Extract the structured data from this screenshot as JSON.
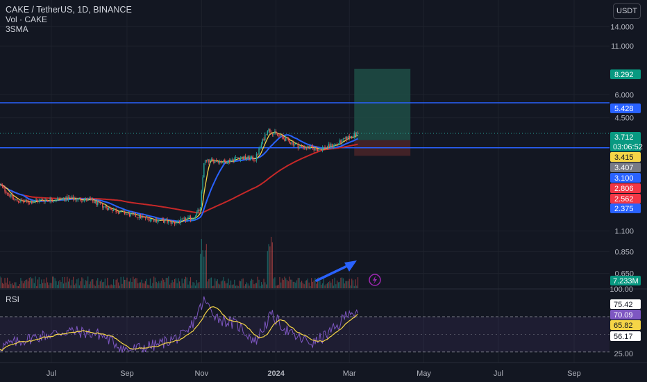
{
  "legend": {
    "title": "CAKE / TetherUS, 1D, BINANCE",
    "vol": "Vol · CAKE",
    "sma": "3SMA"
  },
  "currency_button": "USDT",
  "rsi_pane": {
    "label": "RSI"
  },
  "colors": {
    "background": "#131722",
    "grid": "#1e222d",
    "candle_up": "#26a69a",
    "candle_down": "#ef5350",
    "ma_fast": "#f5d547",
    "ma_mid": "#2962ff",
    "ma_slow": "#c62828",
    "hline": "#2962ff",
    "rsi_line": "#7e57c2",
    "rsi_ma": "#f5d547",
    "arrow": "#2962ff",
    "target_zone": "#1e4d45",
    "stop_zone": "#4a2528"
  },
  "chart_data": [
    {
      "type": "candlestick",
      "title": "CAKE / TetherUS, 1D, BINANCE",
      "y_scale": "log",
      "y_tick_labels": [
        "14.000",
        "11.000",
        "6.000",
        "4.500",
        "1.100",
        "0.850",
        "0.650"
      ],
      "x_tick_labels": [
        "Jul",
        "Sep",
        "Nov",
        "2024",
        "Mar",
        "May",
        "Jul",
        "Sep"
      ],
      "x_range": [
        "2023-05-20",
        "2024-09-30"
      ],
      "ylim": [
        0.54,
        19.5
      ],
      "series_shape": [
        {
          "date": "2023-05-20",
          "price": 1.95
        },
        {
          "date": "2023-06-01",
          "price": 1.62
        },
        {
          "date": "2023-06-10",
          "price": 1.58
        },
        {
          "date": "2023-06-25",
          "price": 1.62
        },
        {
          "date": "2023-07-15",
          "price": 1.65
        },
        {
          "date": "2023-08-01",
          "price": 1.62
        },
        {
          "date": "2023-08-15",
          "price": 1.48
        },
        {
          "date": "2023-09-01",
          "price": 1.36
        },
        {
          "date": "2023-09-20",
          "price": 1.28
        },
        {
          "date": "2023-10-10",
          "price": 1.22
        },
        {
          "date": "2023-10-25",
          "price": 1.3
        },
        {
          "date": "2023-10-31",
          "price": 1.45
        },
        {
          "date": "2023-11-03",
          "price": 2.6
        },
        {
          "date": "2023-11-12",
          "price": 2.65
        },
        {
          "date": "2023-11-20",
          "price": 2.6
        },
        {
          "date": "2023-12-01",
          "price": 2.75
        },
        {
          "date": "2023-12-15",
          "price": 2.7
        },
        {
          "date": "2023-12-25",
          "price": 3.9
        },
        {
          "date": "2024-01-05",
          "price": 3.55
        },
        {
          "date": "2024-01-20",
          "price": 3.15
        },
        {
          "date": "2024-02-05",
          "price": 3.05
        },
        {
          "date": "2024-02-20",
          "price": 3.25
        },
        {
          "date": "2024-03-01",
          "price": 3.55
        },
        {
          "date": "2024-03-08",
          "price": 3.71
        }
      ],
      "horizontal_lines": [
        {
          "label": "5.428",
          "value": 5.428
        },
        {
          "label": "3.100",
          "value": 3.1
        }
      ],
      "price_labels": [
        {
          "text": "8.292",
          "value": 8.292,
          "color": "#089981"
        },
        {
          "text": "5.428",
          "value": 5.428,
          "color": "#2962ff"
        },
        {
          "text": "3.712",
          "value": 3.712,
          "color": "#089981",
          "countdown": "03:06:52"
        },
        {
          "text": "3.415",
          "value": 3.415,
          "color": "#f5d547"
        },
        {
          "text": "3.407",
          "value": 3.407,
          "color": "#787b86"
        },
        {
          "text": "3.100",
          "value": 3.1,
          "color": "#2962ff"
        },
        {
          "text": "2.806",
          "value": 2.806,
          "color": "#f23645"
        },
        {
          "text": "2.562",
          "value": 2.562,
          "color": "#f23645"
        },
        {
          "text": "2.375",
          "value": 2.375,
          "color": "#2962ff"
        }
      ],
      "position_tool": {
        "start": "2024-03-05",
        "end": "2024-04-20",
        "entry": 3.407,
        "target": 8.292,
        "stop": 2.806
      },
      "volume_last_label": "7.233M"
    },
    {
      "type": "line",
      "name": "RSI",
      "y_tick_labels": [
        "100.00",
        "25.00"
      ],
      "levels": [
        70,
        30
      ],
      "ylim": [
        18,
        100
      ],
      "value_labels": [
        {
          "text": "75.42",
          "color": "#ffffff"
        },
        {
          "text": "70.09",
          "color": "#7e57c2"
        },
        {
          "text": "65.82",
          "color": "#f5d547"
        },
        {
          "text": "56.17",
          "color": "#ffffff"
        }
      ],
      "series_shape": [
        {
          "date": "2023-05-20",
          "rsi": 36
        },
        {
          "date": "2023-06-15",
          "rsi": 46
        },
        {
          "date": "2023-07-15",
          "rsi": 54
        },
        {
          "date": "2023-08-10",
          "rsi": 50
        },
        {
          "date": "2023-09-01",
          "rsi": 32
        },
        {
          "date": "2023-09-25",
          "rsi": 38
        },
        {
          "date": "2023-10-20",
          "rsi": 50
        },
        {
          "date": "2023-11-03",
          "rsi": 88
        },
        {
          "date": "2023-11-15",
          "rsi": 68
        },
        {
          "date": "2023-12-01",
          "rsi": 60
        },
        {
          "date": "2023-12-15",
          "rsi": 42
        },
        {
          "date": "2023-12-28",
          "rsi": 72
        },
        {
          "date": "2024-01-15",
          "rsi": 48
        },
        {
          "date": "2024-02-01",
          "rsi": 40
        },
        {
          "date": "2024-02-20",
          "rsi": 58
        },
        {
          "date": "2024-03-01",
          "rsi": 78
        },
        {
          "date": "2024-03-08",
          "rsi": 70
        }
      ]
    }
  ]
}
